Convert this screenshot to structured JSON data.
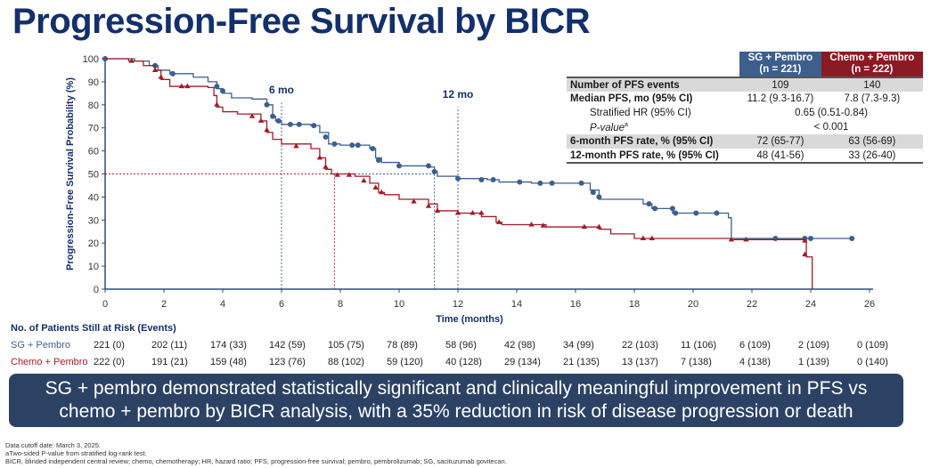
{
  "title": "Progression-Free Survival by BICR",
  "chart_data": {
    "type": "line",
    "subtype": "kaplan-meier step",
    "xlabel": "Time (months)",
    "ylabel": "Progression-Free Survival Probability (%)",
    "xlim": [
      0,
      26
    ],
    "ylim": [
      0,
      100
    ],
    "xticks": [
      0,
      2,
      4,
      6,
      8,
      10,
      12,
      14,
      16,
      18,
      20,
      22,
      24,
      26
    ],
    "yticks": [
      0,
      10,
      20,
      30,
      40,
      50,
      60,
      70,
      80,
      90,
      100
    ],
    "grid": false,
    "annotations": [
      {
        "label": "6 mo",
        "x": 6
      },
      {
        "label": "12 mo",
        "x": 12
      }
    ],
    "median_lines": [
      {
        "series": "SG + Pembro",
        "x": 11.2,
        "y": 50,
        "color": "#3d5f8e"
      },
      {
        "series": "Chemo + Pembro",
        "x": 7.8,
        "y": 50,
        "color": "#c0202c"
      }
    ],
    "series": [
      {
        "name": "SG + Pembro",
        "color": "#3d5f8e",
        "marker": "circle",
        "steps": [
          [
            0,
            100
          ],
          [
            1,
            99
          ],
          [
            1.5,
            97
          ],
          [
            1.8,
            95
          ],
          [
            2.2,
            93.5
          ],
          [
            3,
            92
          ],
          [
            3.5,
            90
          ],
          [
            3.8,
            87
          ],
          [
            4,
            85
          ],
          [
            4.3,
            83
          ],
          [
            5,
            82.5
          ],
          [
            5.5,
            80
          ],
          [
            5.7,
            75
          ],
          [
            5.8,
            73
          ],
          [
            6,
            71.5
          ],
          [
            7,
            71
          ],
          [
            7.3,
            68
          ],
          [
            7.6,
            63
          ],
          [
            8,
            62.5
          ],
          [
            9,
            61
          ],
          [
            9.2,
            57
          ],
          [
            9.4,
            55
          ],
          [
            10,
            53.5
          ],
          [
            11,
            53
          ],
          [
            11.2,
            51
          ],
          [
            11.3,
            49
          ],
          [
            12,
            48
          ],
          [
            13,
            47.5
          ],
          [
            13.4,
            46.5
          ],
          [
            14.5,
            46
          ],
          [
            16.5,
            43
          ],
          [
            16.8,
            39
          ],
          [
            18.3,
            37
          ],
          [
            18.6,
            35
          ],
          [
            19.3,
            33
          ],
          [
            21.2,
            31
          ],
          [
            21.3,
            22
          ],
          [
            25.4,
            22
          ]
        ],
        "censored": [
          [
            0,
            100
          ],
          [
            1.7,
            97
          ],
          [
            2.3,
            93.5
          ],
          [
            3.8,
            88
          ],
          [
            4,
            86
          ],
          [
            5.5,
            80
          ],
          [
            5.7,
            75
          ],
          [
            5.9,
            73
          ],
          [
            6.3,
            71.5
          ],
          [
            6.6,
            71.5
          ],
          [
            7.1,
            71
          ],
          [
            7.5,
            66
          ],
          [
            7.8,
            63
          ],
          [
            8.4,
            62.5
          ],
          [
            8.6,
            62.5
          ],
          [
            9.1,
            61
          ],
          [
            9.3,
            56
          ],
          [
            10,
            53.5
          ],
          [
            11,
            53.5
          ],
          [
            11.2,
            51
          ],
          [
            12,
            48
          ],
          [
            12.8,
            47.5
          ],
          [
            13.2,
            47.5
          ],
          [
            14.1,
            46.5
          ],
          [
            14.8,
            46
          ],
          [
            15.2,
            46
          ],
          [
            16.2,
            46
          ],
          [
            16.6,
            42
          ],
          [
            16.8,
            40
          ],
          [
            18.5,
            37
          ],
          [
            18.7,
            35
          ],
          [
            19.3,
            35
          ],
          [
            19.4,
            33
          ],
          [
            20.1,
            33
          ],
          [
            20.8,
            33
          ],
          [
            22.8,
            22
          ],
          [
            23.8,
            22
          ],
          [
            24,
            22
          ],
          [
            25.4,
            22
          ]
        ]
      },
      {
        "name": "Chemo + Pembro",
        "color": "#a01c28",
        "marker": "triangle",
        "steps": [
          [
            0,
            100
          ],
          [
            0.8,
            99
          ],
          [
            1.3,
            97
          ],
          [
            1.7,
            95
          ],
          [
            1.9,
            91
          ],
          [
            2.2,
            88
          ],
          [
            3.5,
            87.5
          ],
          [
            3.7,
            84
          ],
          [
            3.8,
            79
          ],
          [
            4,
            77
          ],
          [
            4.5,
            76
          ],
          [
            5.3,
            73
          ],
          [
            5.5,
            68
          ],
          [
            5.7,
            65
          ],
          [
            6,
            63
          ],
          [
            7,
            61
          ],
          [
            7.3,
            57
          ],
          [
            7.5,
            52
          ],
          [
            7.7,
            50
          ],
          [
            8.5,
            49
          ],
          [
            9,
            46
          ],
          [
            9.3,
            42
          ],
          [
            9.5,
            41
          ],
          [
            10,
            39
          ],
          [
            11,
            37
          ],
          [
            11.3,
            34
          ],
          [
            12,
            33
          ],
          [
            12.8,
            31.5
          ],
          [
            13.3,
            29
          ],
          [
            13.5,
            28
          ],
          [
            15,
            27
          ],
          [
            16.8,
            26
          ],
          [
            17.2,
            24
          ],
          [
            18,
            22
          ],
          [
            21.3,
            21.5
          ],
          [
            23.8,
            21
          ],
          [
            23.85,
            14
          ],
          [
            24.05,
            14
          ],
          [
            24.05,
            0
          ]
        ],
        "censored": [
          [
            0.9,
            99
          ],
          [
            1.7,
            95
          ],
          [
            1.9,
            92
          ],
          [
            2.6,
            88
          ],
          [
            2.8,
            88
          ],
          [
            3.8,
            80
          ],
          [
            5,
            75
          ],
          [
            5.3,
            73
          ],
          [
            5.5,
            69
          ],
          [
            6.5,
            62
          ],
          [
            7.3,
            57
          ],
          [
            7.5,
            53
          ],
          [
            7.9,
            49.5
          ],
          [
            8.3,
            49.5
          ],
          [
            8.8,
            47
          ],
          [
            9.2,
            44
          ],
          [
            9.4,
            42
          ],
          [
            10.5,
            38
          ],
          [
            11,
            36
          ],
          [
            11.3,
            34
          ],
          [
            12,
            33
          ],
          [
            12.5,
            33
          ],
          [
            12.8,
            33
          ],
          [
            13.4,
            29
          ],
          [
            14.5,
            28
          ],
          [
            14.9,
            27.5
          ],
          [
            16.3,
            27
          ],
          [
            16.8,
            27
          ],
          [
            18.3,
            22
          ],
          [
            18.6,
            22
          ],
          [
            21.3,
            21.5
          ],
          [
            21.8,
            21.5
          ],
          [
            23.8,
            21
          ],
          [
            23.8,
            15
          ]
        ]
      }
    ]
  },
  "table": {
    "headers": [
      "",
      "SG + Pembro\n(n = 221)",
      "Chemo + Pembro\n(n = 222)"
    ],
    "header_sg": [
      "SG + Pembro",
      "(n = 221)"
    ],
    "header_chemo": [
      "Chemo + Pembro",
      "(n = 222)"
    ],
    "rows": [
      {
        "label": "Number of PFS events",
        "sg": "109",
        "chemo": "140"
      },
      {
        "label": "Median PFS, mo (95% CI)",
        "sg": "11.2 (9.3-16.7)",
        "chemo": "7.8 (7.3-9.3)"
      },
      {
        "label": "Stratified HR (95% CI)",
        "both": "0.65 (0.51-0.84)"
      },
      {
        "label": "P-value",
        "sup": "a",
        "both": "< 0.001"
      },
      {
        "label": "6-month PFS rate, % (95% CI)",
        "sg": "72 (65-77)",
        "chemo": "63 (56-69)"
      },
      {
        "label": "12-month PFS rate, % (95% CI)",
        "sg": "48 (41-56)",
        "chemo": "33 (26-40)"
      }
    ]
  },
  "risk": {
    "heading": "No. of Patients Still at Risk (Events)",
    "rows": [
      {
        "label": "SG + Pembro",
        "color": "#3d5f8e",
        "values": [
          "221 (0)",
          "202 (11)",
          "174 (33)",
          "142 (59)",
          "105 (75)",
          "78 (89)",
          "58 (96)",
          "42 (98)",
          "34 (99)",
          "22 (103)",
          "11 (106)",
          "6 (109)",
          "2 (109)",
          "0 (109)"
        ]
      },
      {
        "label": "Chemo + Pembro",
        "color": "#a01c28",
        "values": [
          "222 (0)",
          "191 (21)",
          "159 (48)",
          "123 (76)",
          "88 (102)",
          "59 (120)",
          "40 (128)",
          "29 (134)",
          "21 (135)",
          "13 (137)",
          "7 (138)",
          "4 (138)",
          "1 (139)",
          "0 (140)"
        ]
      }
    ]
  },
  "banner": [
    "SG + pembro demonstrated statistically significant and clinically meaningful improvement in PFS vs",
    "chemo + pembro by BICR analysis, with a 35% reduction in risk of disease progression or death"
  ],
  "footnotes": [
    "Data cutoff date: March 3, 2025.",
    "aTwo-sided P-value from stratified log-rank test.",
    "BICR, blinded independent central review; chemo, chemotherapy; HR, hazard ratio; PFS, progression-free survival; pembro, pembrolizumab; SG, sacituzumab govitecan."
  ]
}
